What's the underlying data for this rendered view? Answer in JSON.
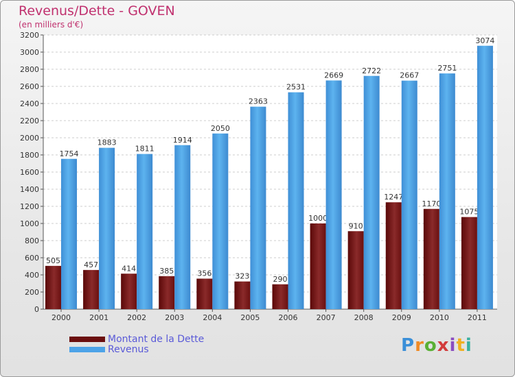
{
  "chart_data": {
    "type": "bar",
    "title": "Revenus/Dette - GOVEN",
    "subtitle": "(en milliers d'€)",
    "categories": [
      "2000",
      "2001",
      "2002",
      "2003",
      "2004",
      "2005",
      "2006",
      "2007",
      "2008",
      "2009",
      "2010",
      "2011"
    ],
    "series": [
      {
        "name": "Montant de la Dette",
        "color": "#7a1a1a",
        "values": [
          505,
          457,
          414,
          385,
          356,
          323,
          290,
          1000,
          910,
          1247,
          1170,
          1075
        ]
      },
      {
        "name": "Revenus",
        "color": "#4da3e8",
        "values": [
          1754,
          1883,
          1811,
          1914,
          2050,
          2363,
          2531,
          2669,
          2722,
          2667,
          2751,
          3074
        ]
      }
    ],
    "ylim": [
      0,
      3200
    ],
    "ytick_step": 200,
    "grid": true,
    "legend_position": "bottom-left"
  },
  "branding": {
    "logo_letters": [
      "P",
      "r",
      "o",
      "x",
      "i",
      "t",
      "i"
    ],
    "logo_colors": [
      "#3a8fd8",
      "#f08a24",
      "#5ab035",
      "#d23c3c",
      "#8a4cc0",
      "#f0b020",
      "#3ab0a0"
    ]
  }
}
